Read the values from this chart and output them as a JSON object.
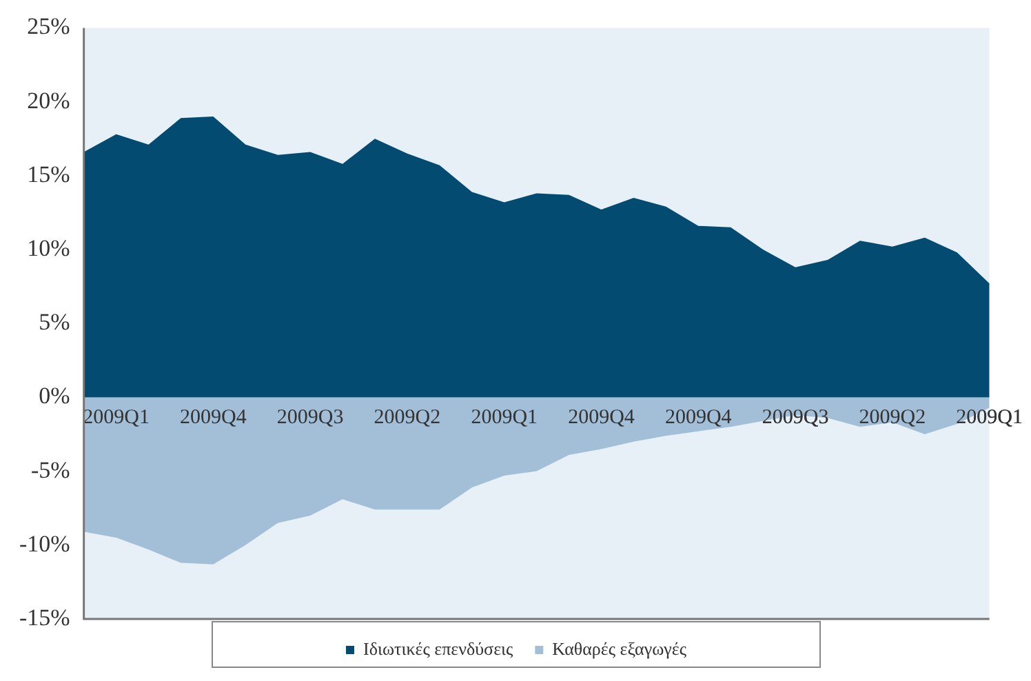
{
  "chart_data": {
    "type": "area",
    "categories": [
      null,
      "2009Q1",
      null,
      null,
      "2009Q4",
      null,
      null,
      "2009Q3",
      null,
      null,
      "2009Q2",
      null,
      null,
      "2009Q1",
      null,
      null,
      "2009Q4",
      null,
      null,
      "2009Q4",
      null,
      null,
      "2009Q3",
      null,
      null,
      "2009Q2",
      null,
      null,
      "2009Q1"
    ],
    "series": [
      {
        "name": "Ιδιωτικές επενδύσεις",
        "color": "#034b71",
        "values": [
          16.6,
          17.8,
          17.1,
          18.9,
          19.0,
          17.1,
          16.4,
          16.6,
          15.8,
          17.5,
          16.5,
          15.7,
          13.9,
          13.2,
          13.8,
          13.7,
          12.7,
          13.5,
          12.9,
          11.6,
          11.5,
          10.0,
          8.8,
          9.3,
          10.6,
          10.2,
          10.8,
          9.8,
          7.7
        ]
      },
      {
        "name": "Καθαρές εξαγωγές",
        "color": "#a3bfd8",
        "values": [
          -9.1,
          -9.5,
          -10.3,
          -11.2,
          -11.3,
          -10.0,
          -8.5,
          -8.0,
          -6.9,
          -7.6,
          -7.6,
          -7.6,
          -6.1,
          -5.3,
          -5.0,
          -3.9,
          -3.5,
          -3.0,
          -2.6,
          -2.3,
          -2.0,
          -1.6,
          -1.2,
          -1.4,
          -2.0,
          -1.7,
          -2.5,
          -1.8,
          -0.7
        ]
      }
    ],
    "ylim": [
      -15,
      25
    ],
    "yticks": [
      {
        "value": -15,
        "label": "-15%"
      },
      {
        "value": -10,
        "label": "-10%"
      },
      {
        "value": -5,
        "label": "-5%"
      },
      {
        "value": 0,
        "label": "0%"
      },
      {
        "value": 5,
        "label": "5%"
      },
      {
        "value": 10,
        "label": "10%"
      },
      {
        "value": 15,
        "label": "15%"
      },
      {
        "value": 20,
        "label": "20%"
      },
      {
        "value": 25,
        "label": "25%"
      }
    ],
    "grid": false,
    "legend": "bottom"
  }
}
